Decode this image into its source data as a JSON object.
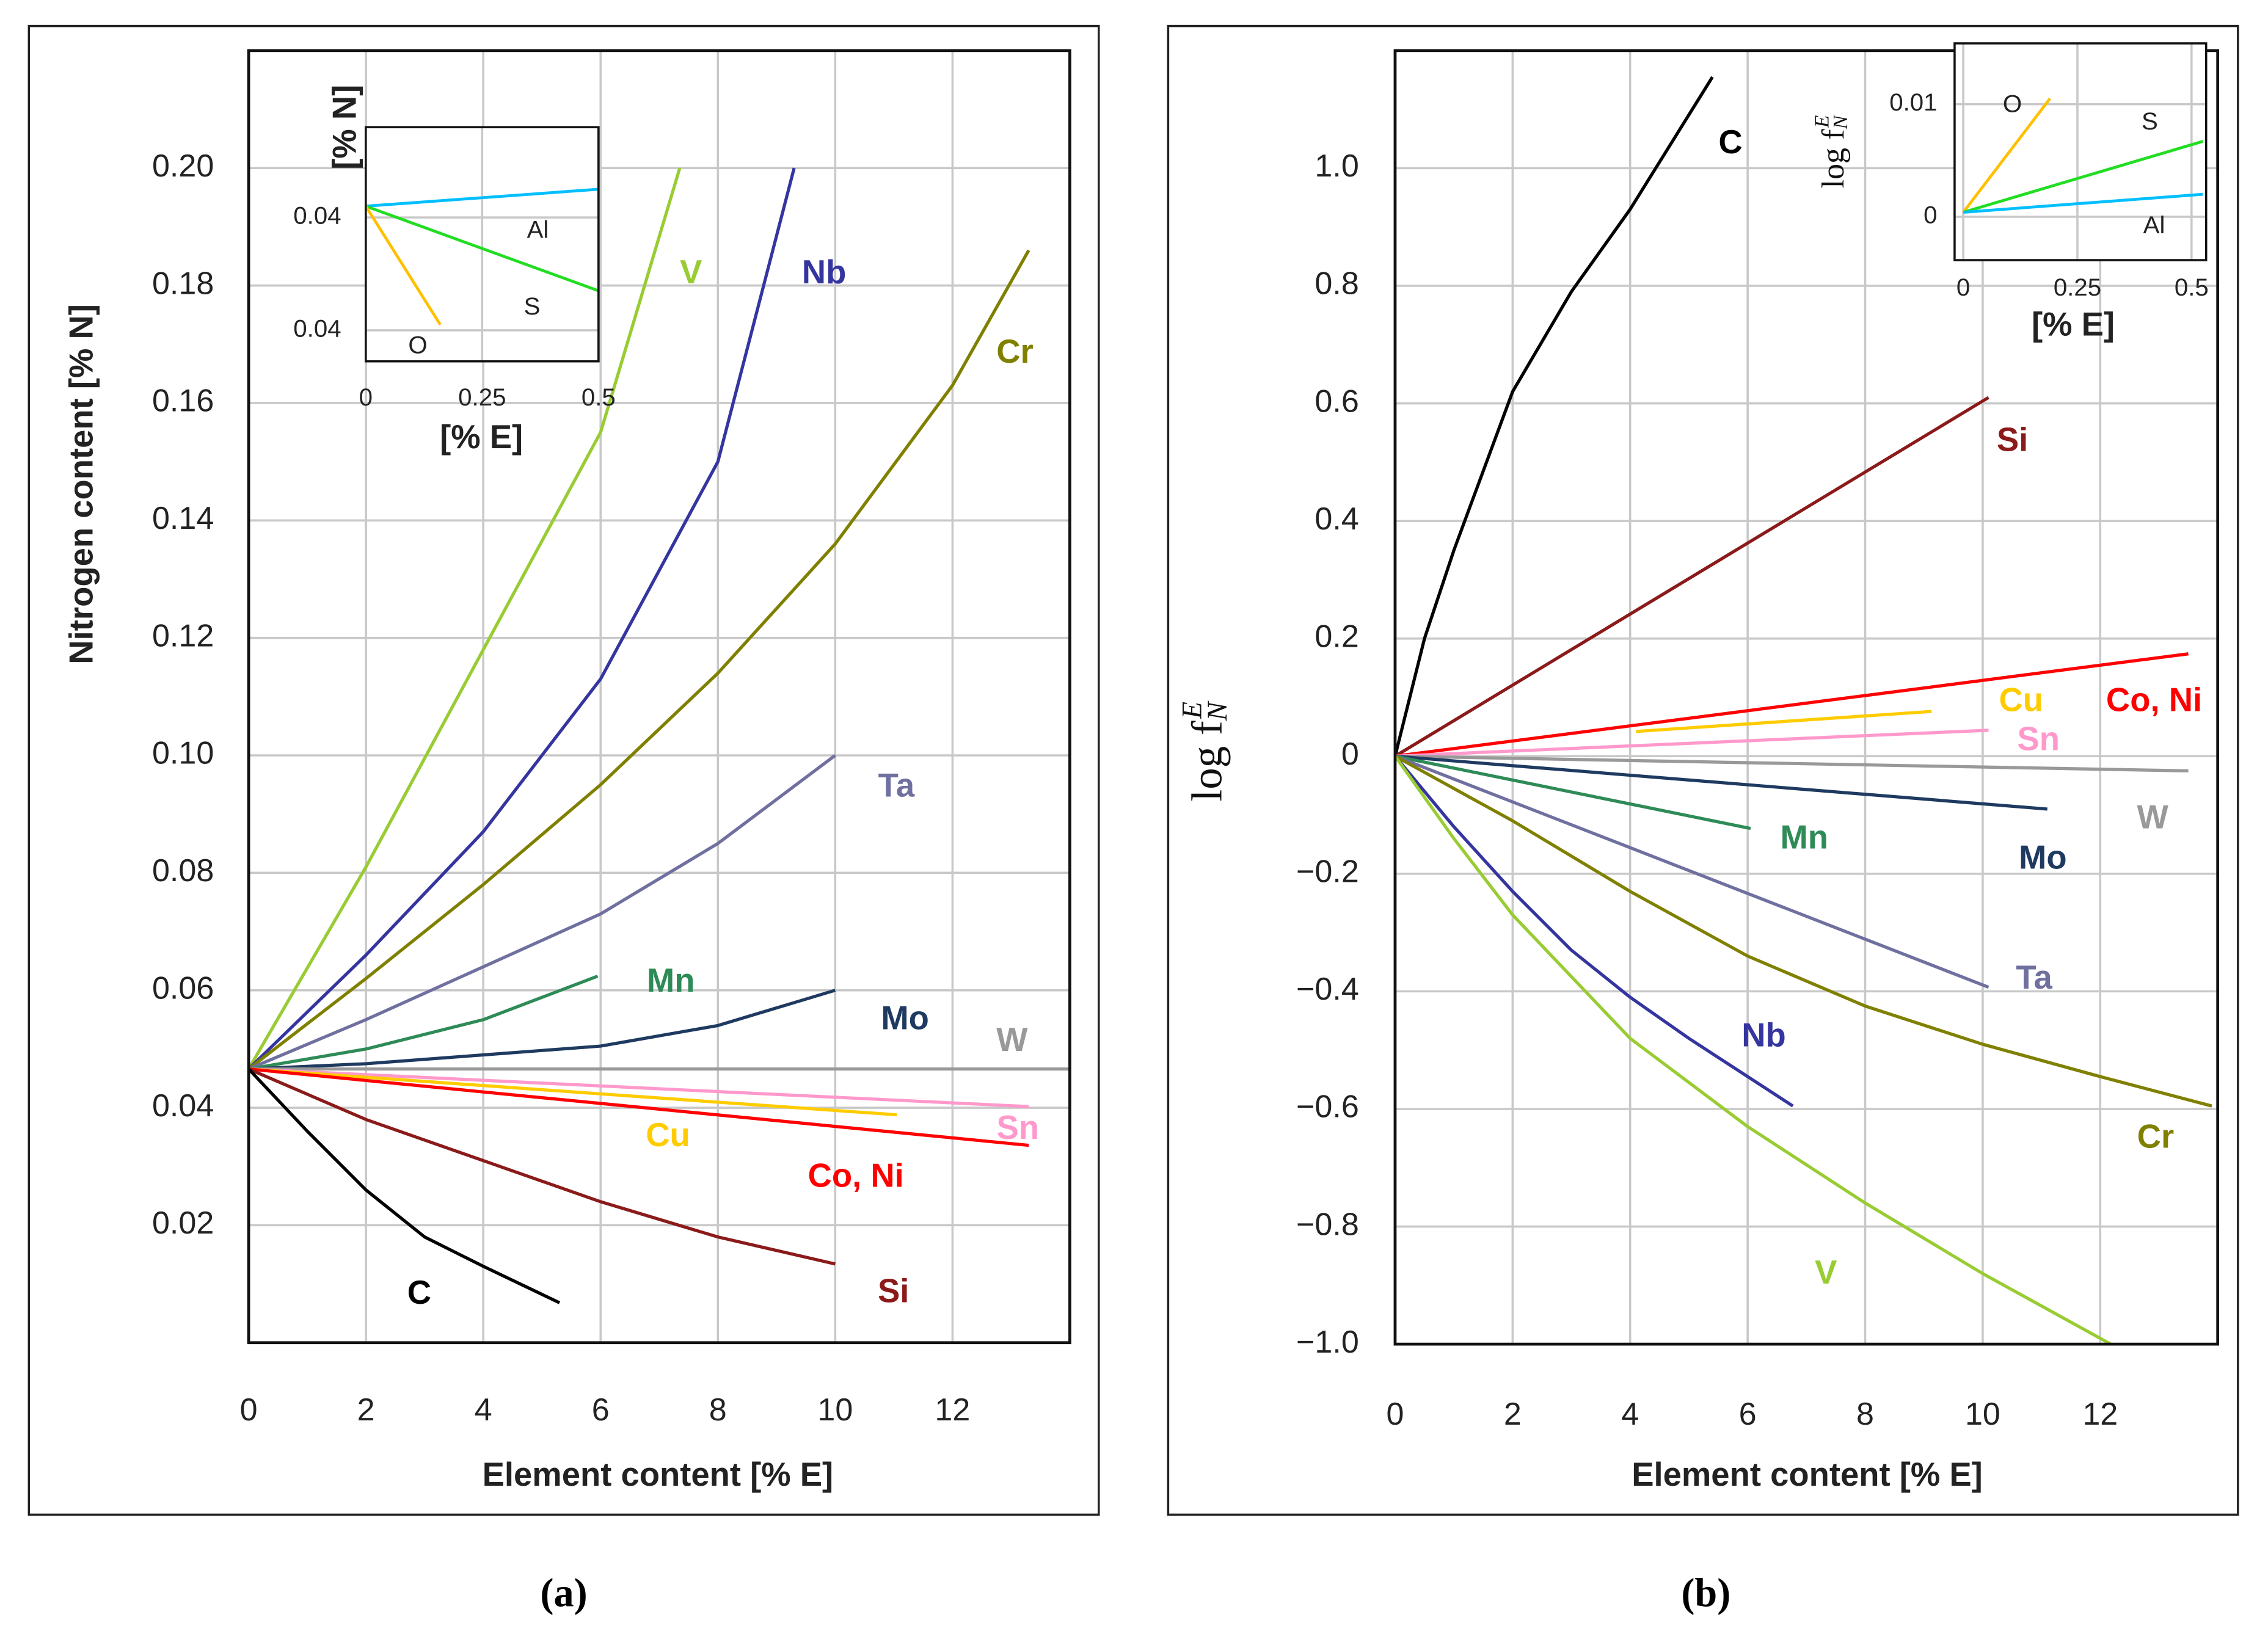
{
  "chart_data": [
    {
      "type": "line",
      "caption": "(a)",
      "xlabel": "Element content [% E]",
      "ylabel": "Nitrogen content [% N]",
      "xlim": [
        0,
        14
      ],
      "ylim": [
        0,
        0.22
      ],
      "xticks": [
        0,
        2,
        4,
        6,
        8,
        10,
        12
      ],
      "yticks": [
        0.02,
        0.04,
        0.06,
        0.08,
        {
          "value": 0.1,
          "label": "0.10"
        },
        0.12,
        0.14,
        0.16,
        0.18,
        {
          "value": 0.2,
          "label": "0.20"
        }
      ],
      "grid": true,
      "series": [
        {
          "name": "V",
          "color": "#99cc33",
          "x": [
            0,
            2,
            4,
            6,
            7.35
          ],
          "values": [
            0.0466,
            0.081,
            0.118,
            0.155,
            0.2
          ]
        },
        {
          "name": "Nb",
          "color": "#3535a0",
          "x": [
            0,
            2,
            4,
            6,
            8,
            9.3
          ],
          "values": [
            0.0466,
            0.066,
            0.087,
            0.113,
            0.15,
            0.2
          ]
        },
        {
          "name": "Cr",
          "color": "#808000",
          "x": [
            0,
            2,
            4,
            6,
            8,
            10,
            12,
            13.3
          ],
          "values": [
            0.0466,
            0.062,
            0.078,
            0.095,
            0.114,
            0.136,
            0.163,
            0.186
          ]
        },
        {
          "name": "Ta",
          "color": "#7070a0",
          "x": [
            0,
            2,
            4,
            6,
            8,
            10
          ],
          "values": [
            0.0466,
            0.055,
            0.064,
            0.073,
            0.085,
            0.1
          ]
        },
        {
          "name": "Mn",
          "color": "#2e8b57",
          "x": [
            0,
            2,
            4,
            5.95
          ],
          "values": [
            0.0466,
            0.05,
            0.055,
            0.0624
          ]
        },
        {
          "name": "Mo",
          "color": "#1f3a60",
          "x": [
            0,
            2,
            4,
            6,
            8,
            10
          ],
          "values": [
            0.0466,
            0.0475,
            0.049,
            0.0505,
            0.054,
            0.06
          ]
        },
        {
          "name": "W",
          "color": "#999999",
          "x": [
            0,
            14
          ],
          "values": [
            0.0466,
            0.0466
          ]
        },
        {
          "name": "Sn",
          "color": "#ff99cc",
          "x": [
            0,
            13.3
          ],
          "values": [
            0.0466,
            0.0402
          ]
        },
        {
          "name": "Cu",
          "color": "#ffcc00",
          "x": [
            0,
            11.05
          ],
          "values": [
            0.0466,
            0.0388
          ]
        },
        {
          "name": "Co, Ni",
          "color": "#ff0000",
          "x": [
            0,
            13.3
          ],
          "values": [
            0.0466,
            0.0336
          ]
        },
        {
          "name": "Si",
          "color": "#8b1a1a",
          "x": [
            0,
            2,
            4,
            6,
            8,
            10
          ],
          "values": [
            0.0466,
            0.038,
            0.031,
            0.024,
            0.018,
            0.0134
          ]
        },
        {
          "name": "C",
          "color": "#000000",
          "x": [
            0,
            1,
            2,
            3,
            4,
            5.3
          ],
          "values": [
            0.0466,
            0.036,
            0.026,
            0.018,
            0.013,
            0.0068
          ]
        }
      ]
    },
    {
      "type": "line",
      "xlabel": "[% E]",
      "ylabel": "[% N]",
      "xlim": [
        0,
        0.5
      ],
      "ylim": [
        0.0389,
        0.0472
      ],
      "xticks": [
        0,
        0.25,
        0.5
      ],
      "yticks": [
        {
          "value": 0.04,
          "label": "0.04"
        },
        {
          "value": 0.044,
          "label": "0.04"
        }
      ],
      "grid": true,
      "series": [
        {
          "name": "Al",
          "color": "#00bfff",
          "x": [
            0,
            0.5
          ],
          "values": [
            0.0444,
            0.045
          ]
        },
        {
          "name": "S",
          "color": "#22dd22",
          "x": [
            0,
            0.5
          ],
          "values": [
            0.0444,
            0.0414
          ]
        },
        {
          "name": "O",
          "color": "#ffc000",
          "x": [
            0,
            0.16
          ],
          "values": [
            0.0444,
            0.0402
          ]
        }
      ]
    },
    {
      "type": "line",
      "caption": "(b)",
      "xlabel": "Element content [% E]",
      "ylabel": {
        "base": "log f",
        "sub": "N",
        "sup": "E"
      },
      "xlim": [
        0,
        14
      ],
      "ylim": [
        -1.0,
        1.2
      ],
      "xticks": [
        0,
        2,
        4,
        6,
        8,
        10,
        12
      ],
      "yticks": [
        {
          "value": -1.0,
          "label": "−1.0"
        },
        {
          "value": -0.8,
          "label": "−0.8"
        },
        {
          "value": -0.6,
          "label": "−0.6"
        },
        {
          "value": -0.4,
          "label": "−0.4"
        },
        {
          "value": -0.2,
          "label": "−0.2"
        },
        0,
        0.2,
        0.4,
        0.6,
        0.8,
        {
          "value": 1.0,
          "label": "1.0"
        }
      ],
      "grid": true,
      "series": [
        {
          "name": "C",
          "color": "#000000",
          "x": [
            0,
            0.5,
            1,
            2,
            3,
            4,
            5.4
          ],
          "values": [
            0,
            0.2,
            0.35,
            0.62,
            0.79,
            0.93,
            1.155
          ]
        },
        {
          "name": "Si",
          "color": "#8b1a1a",
          "x": [
            0,
            10.1
          ],
          "values": [
            0,
            0.61
          ]
        },
        {
          "name": "Co, Ni",
          "color": "#ff0000",
          "x": [
            0,
            13.5
          ],
          "values": [
            0,
            0.174
          ]
        },
        {
          "name": "Cu",
          "color": "#ffcc00",
          "x": [
            4.1,
            9.13
          ],
          "values": [
            0.042,
            0.076
          ]
        },
        {
          "name": "Sn",
          "color": "#ff99cc",
          "x": [
            0,
            10.1
          ],
          "values": [
            0,
            0.044
          ]
        },
        {
          "name": "W",
          "color": "#999999",
          "x": [
            0,
            13.5
          ],
          "values": [
            0,
            -0.025
          ]
        },
        {
          "name": "Mo",
          "color": "#1f3a60",
          "x": [
            0,
            11.1
          ],
          "values": [
            0,
            -0.09
          ]
        },
        {
          "name": "Mn",
          "color": "#2e8b57",
          "x": [
            0,
            6.05
          ],
          "values": [
            0,
            -0.123
          ]
        },
        {
          "name": "Ta",
          "color": "#7070a0",
          "x": [
            0,
            10.1
          ],
          "values": [
            0,
            -0.393
          ]
        },
        {
          "name": "Nb",
          "color": "#3535a0",
          "x": [
            0,
            1,
            2,
            3,
            4,
            5,
            6.77
          ],
          "values": [
            0,
            -0.12,
            -0.23,
            -0.33,
            -0.41,
            -0.48,
            -0.595
          ]
        },
        {
          "name": "Cr",
          "color": "#808000",
          "x": [
            0,
            2,
            4,
            6,
            8,
            10,
            12,
            13.9
          ],
          "values": [
            0,
            -0.11,
            -0.23,
            -0.34,
            -0.425,
            -0.49,
            -0.545,
            -0.595
          ]
        },
        {
          "name": "V",
          "color": "#99cc33",
          "x": [
            0,
            1,
            2,
            4,
            6,
            8,
            10,
            12.18
          ],
          "values": [
            0,
            -0.14,
            -0.27,
            -0.48,
            -0.63,
            -0.76,
            -0.88,
            -1.0
          ]
        }
      ]
    },
    {
      "type": "line",
      "xlabel": "[% E]",
      "ylabel": {
        "base": "log f",
        "sub": "N",
        "sup": "E"
      },
      "xlim": [
        -0.019,
        0.532
      ],
      "ylim": [
        -0.00385,
        0.0154
      ],
      "xticks": [
        0,
        0.25,
        0.5
      ],
      "yticks": [
        0,
        0.01
      ],
      "grid": true,
      "series": [
        {
          "name": "O",
          "color": "#ffc000",
          "x": [
            0,
            0.19
          ],
          "values": [
            0.0004,
            0.0105
          ]
        },
        {
          "name": "S",
          "color": "#22dd22",
          "x": [
            0,
            0.525
          ],
          "values": [
            0.0004,
            0.0067
          ]
        },
        {
          "name": "Al",
          "color": "#00bfff",
          "x": [
            0,
            0.525
          ],
          "values": [
            0.0004,
            0.002
          ]
        }
      ]
    }
  ]
}
